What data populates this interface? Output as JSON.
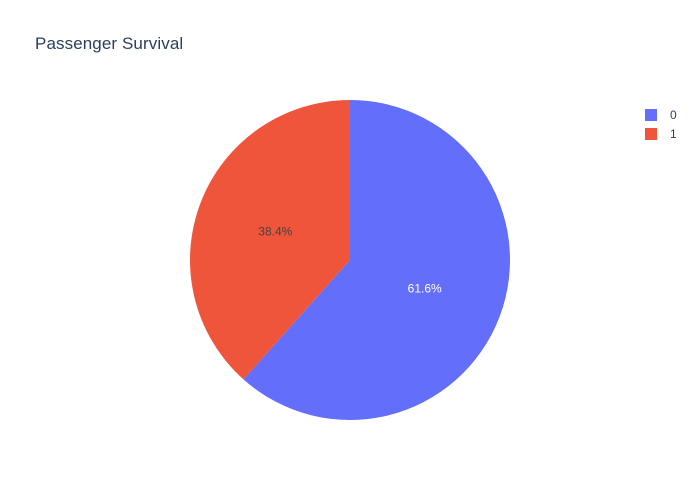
{
  "chart_data": {
    "type": "pie",
    "title": "Passenger Survival",
    "categories": [
      "0",
      "1"
    ],
    "values": [
      61.6,
      38.4
    ],
    "labels": [
      "61.6%",
      "38.4%"
    ],
    "colors": [
      "#636efa",
      "#ef553b"
    ],
    "label_colors": [
      "#ffffff",
      "#444444"
    ],
    "direction": "clockwise",
    "start_angle_deg": 90,
    "legend": {
      "position": "top-right",
      "entries": [
        "0",
        "1"
      ]
    }
  }
}
